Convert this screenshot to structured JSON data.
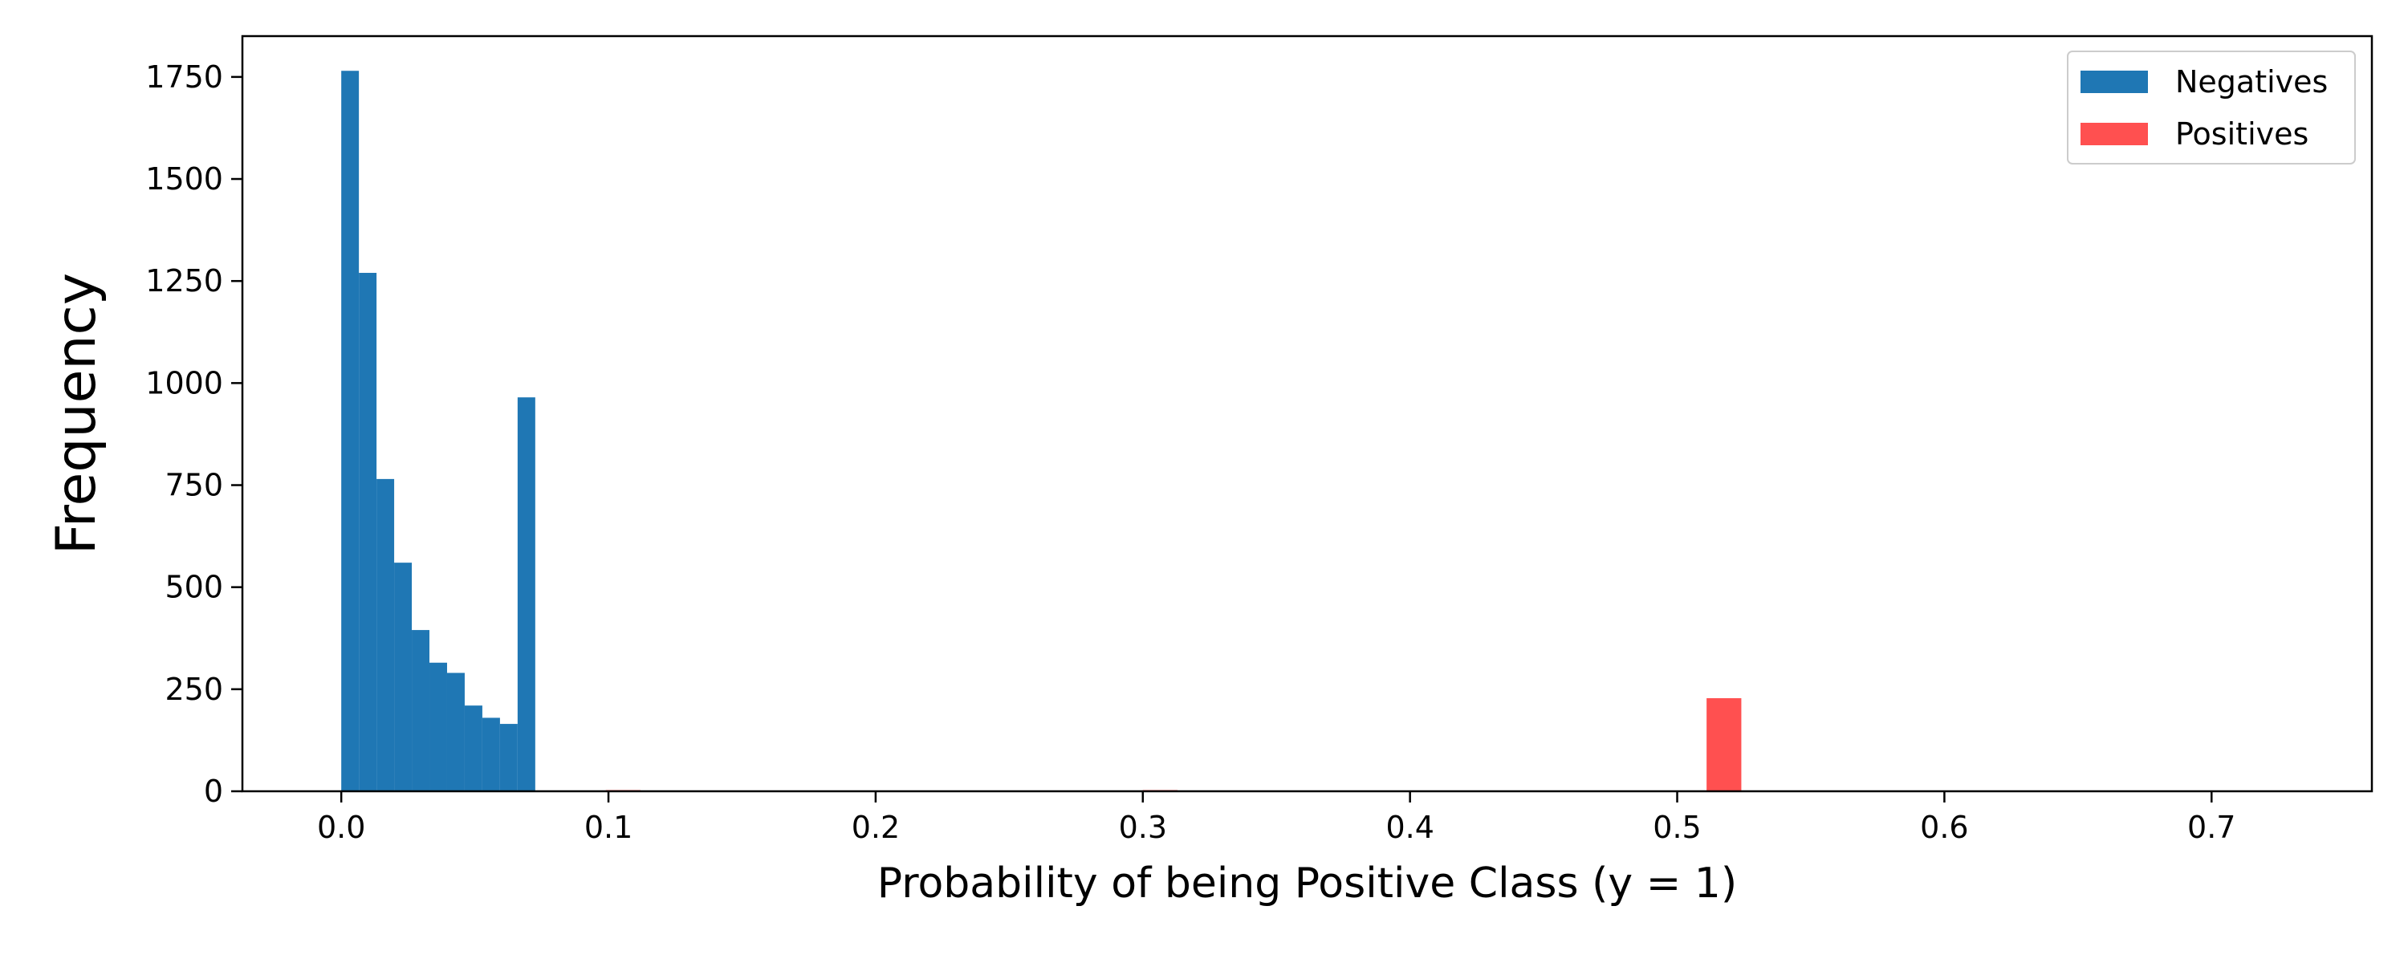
{
  "chart_data": {
    "type": "bar",
    "title": "",
    "xlabel": "Probability of being Positive Class (y = 1)",
    "ylabel": "Frequency",
    "xlim": [
      -0.037,
      0.76
    ],
    "ylim": [
      0,
      1850
    ],
    "xticks": [
      0.0,
      0.1,
      0.2,
      0.3,
      0.4,
      0.5,
      0.6,
      0.7
    ],
    "xtick_labels": [
      "0.0",
      "0.1",
      "0.2",
      "0.3",
      "0.4",
      "0.5",
      "0.6",
      "0.7"
    ],
    "yticks": [
      0,
      250,
      500,
      750,
      1000,
      1250,
      1500,
      1750
    ],
    "ytick_labels": [
      "0",
      "250",
      "500",
      "750",
      "1000",
      "1250",
      "1500",
      "1750"
    ],
    "grid": false,
    "legend": {
      "position": "top-right"
    },
    "series": [
      {
        "name": "Negatives",
        "color": "#1f77b4",
        "bins": [
          [
            0.0,
            0.0066,
            1765
          ],
          [
            0.0066,
            0.0132,
            1270
          ],
          [
            0.0132,
            0.0198,
            765
          ],
          [
            0.0198,
            0.0264,
            560
          ],
          [
            0.0264,
            0.033,
            395
          ],
          [
            0.033,
            0.0396,
            315
          ],
          [
            0.0396,
            0.0462,
            290
          ],
          [
            0.0462,
            0.0528,
            210
          ],
          [
            0.0528,
            0.0594,
            180
          ],
          [
            0.0594,
            0.066,
            165
          ],
          [
            0.066,
            0.0726,
            965
          ]
        ]
      },
      {
        "name": "Positives",
        "color": "#ff5050",
        "bins": [
          [
            0.099,
            0.112,
            3
          ],
          [
            0.3,
            0.313,
            3
          ],
          [
            0.511,
            0.524,
            228
          ]
        ]
      }
    ]
  }
}
